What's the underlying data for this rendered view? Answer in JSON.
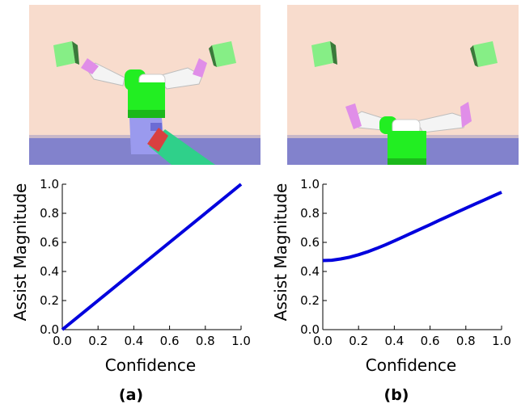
{
  "colors": {
    "wall": "#f8dccd",
    "table": "#8282cc",
    "robot_body": "#22ee22",
    "gripper": "#e08ee8",
    "arm": "#f4f4f4",
    "target_block": "#86ee86",
    "series_line": "#0000dd"
  },
  "panels": [
    {
      "caption": "(a)",
      "scene_image": "robot-scene-with-green-object-in-gripper"
    },
    {
      "caption": "(b)",
      "scene_image": "robot-scene-arms-extended-empty"
    }
  ],
  "chart_data": [
    {
      "type": "line",
      "xlabel": "Confidence",
      "ylabel": "Assist Magnitude",
      "xlim": [
        0.0,
        1.0
      ],
      "ylim": [
        0.0,
        1.0
      ],
      "xticks": [
        "0.0",
        "0.2",
        "0.4",
        "0.6",
        "0.8",
        "1.0"
      ],
      "yticks": [
        "0.0",
        "0.2",
        "0.4",
        "0.6",
        "0.8",
        "1.0"
      ],
      "grid": false,
      "series": [
        {
          "x": [
            0.0,
            0.2,
            0.4,
            0.6,
            0.8,
            1.0
          ],
          "y": [
            0.0,
            0.2,
            0.4,
            0.6,
            0.8,
            1.0
          ]
        }
      ]
    },
    {
      "type": "line",
      "xlabel": "Confidence",
      "ylabel": "Assist Magnitude",
      "xlim": [
        0.0,
        1.0
      ],
      "ylim": [
        0.0,
        1.0
      ],
      "xticks": [
        "0.0",
        "0.2",
        "0.4",
        "0.6",
        "0.8",
        "1.0"
      ],
      "yticks": [
        "0.0",
        "0.2",
        "0.4",
        "0.6",
        "0.8",
        "1.0"
      ],
      "grid": false,
      "series": [
        {
          "x": [
            0.0,
            0.05,
            0.1,
            0.15,
            0.2,
            0.25,
            0.3,
            0.35,
            0.4,
            0.45,
            0.5,
            0.55,
            0.6,
            0.65,
            0.7,
            0.75,
            0.8,
            0.85,
            0.9,
            0.95,
            1.0
          ],
          "y": [
            0.475,
            0.477,
            0.486,
            0.498,
            0.515,
            0.535,
            0.558,
            0.583,
            0.61,
            0.638,
            0.666,
            0.694,
            0.722,
            0.751,
            0.779,
            0.807,
            0.835,
            0.863,
            0.89,
            0.918,
            0.945
          ]
        }
      ]
    }
  ]
}
